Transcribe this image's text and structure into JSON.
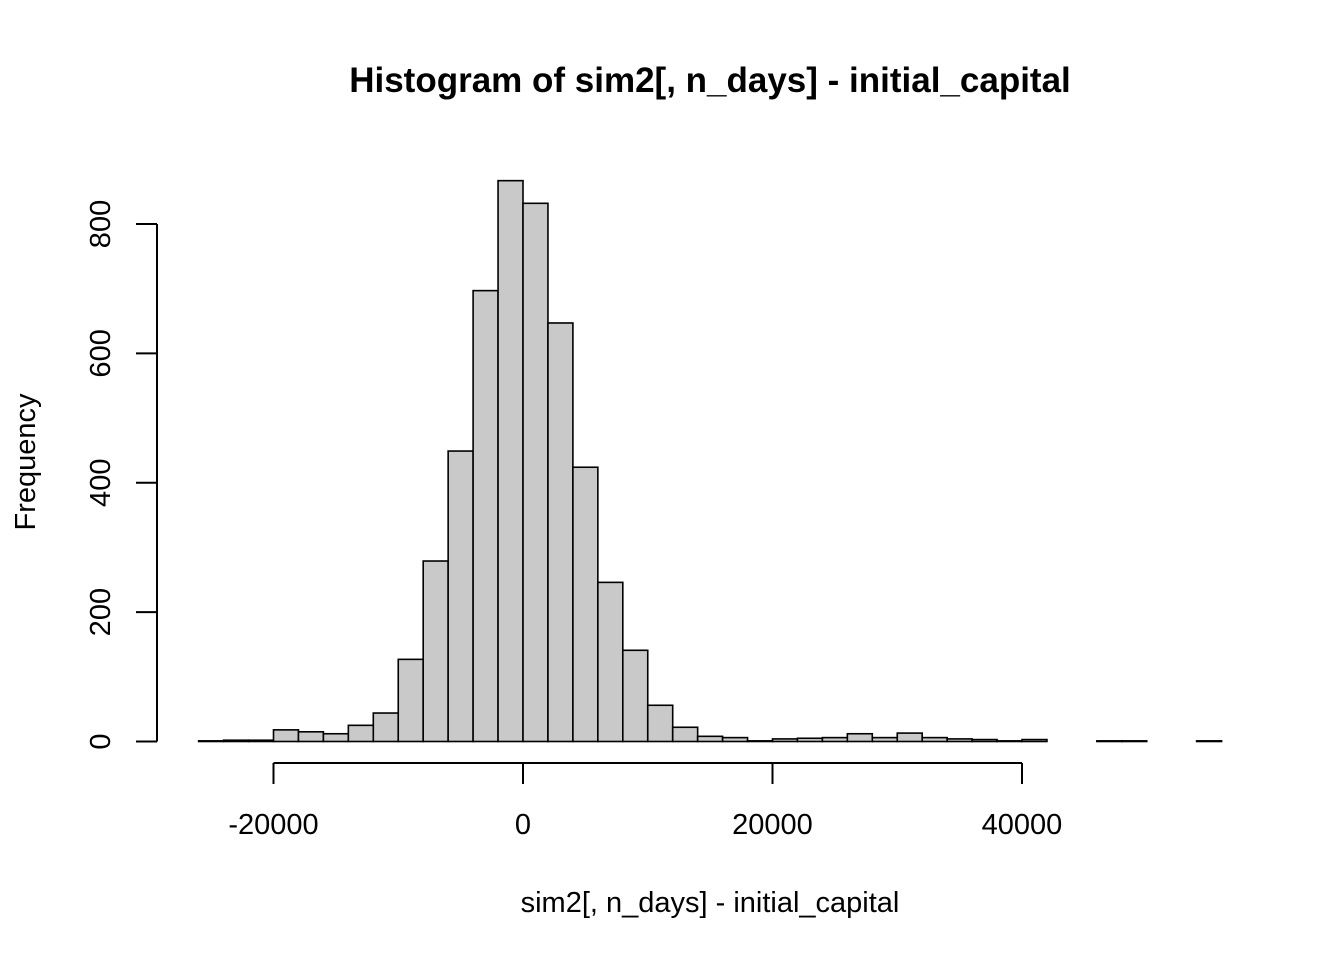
{
  "chart_data": {
    "type": "bar",
    "title": "Histogram of sim2[, n_days] - initial_capital",
    "xlabel": "sim2[, n_days] - initial_capital",
    "ylabel": "Frequency",
    "bin_width": 2000,
    "bin_starts": [
      -26000,
      -24000,
      -22000,
      -20000,
      -18000,
      -16000,
      -14000,
      -12000,
      -10000,
      -8000,
      -6000,
      -4000,
      -2000,
      0,
      2000,
      4000,
      6000,
      8000,
      10000,
      12000,
      14000,
      16000,
      18000,
      20000,
      22000,
      24000,
      26000,
      28000,
      30000,
      32000,
      34000,
      36000,
      38000,
      40000,
      42000,
      44000,
      46000,
      48000,
      50000,
      52000,
      54000
    ],
    "values": [
      1,
      2,
      2,
      18,
      15,
      12,
      25,
      44,
      127,
      279,
      449,
      697,
      867,
      832,
      647,
      424,
      246,
      141,
      56,
      22,
      8,
      6,
      1,
      4,
      5,
      6,
      12,
      6,
      13,
      6,
      4,
      3,
      1,
      3,
      0,
      0,
      1,
      1,
      0,
      0,
      1
    ],
    "xticks": [
      -20000,
      0,
      20000,
      40000
    ],
    "xtick_labels": [
      "-20000",
      "0",
      "20000",
      "40000"
    ],
    "yticks": [
      0,
      200,
      400,
      600,
      800
    ],
    "ytick_labels": [
      "0",
      "200",
      "400",
      "600",
      "800"
    ],
    "xlim": [
      -26000,
      56000
    ],
    "ylim": [
      0,
      867
    ],
    "bar_fill": "#c9c9c9",
    "bar_stroke": "#000000",
    "grid": false,
    "legend": "none"
  }
}
